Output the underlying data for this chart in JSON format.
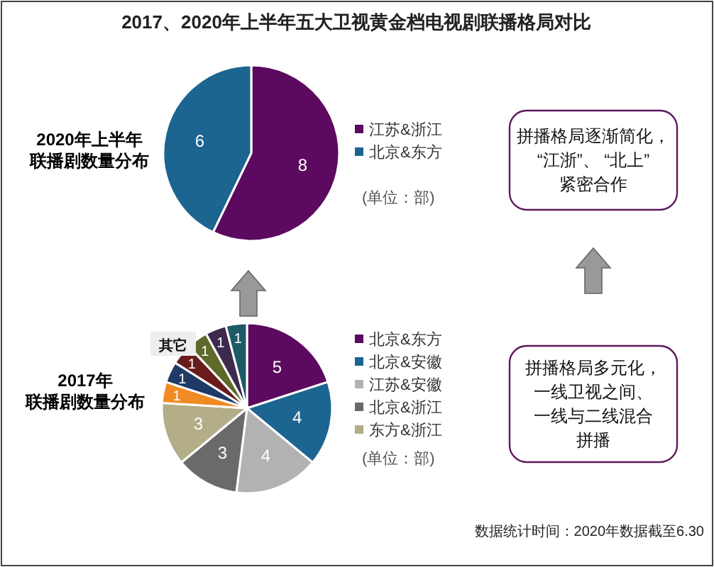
{
  "chart_data": [
    {
      "type": "pie",
      "title": "2020年上半年联播剧数量分布",
      "categories": [
        "江苏&浙江",
        "北京&东方"
      ],
      "values": [
        8,
        6
      ],
      "colors": [
        "#5c0a5f",
        "#1b6590"
      ],
      "data_labels": true,
      "legend": "right",
      "annotations": [
        "2017、2020年上半年五大卫视黄金档电视剧联播格局对比",
        "(单位：部)",
        "拼播格局逐渐简化，“江浙”、 “北上”紧密合作"
      ]
    },
    {
      "type": "pie",
      "title": "2017年联播剧数量分布",
      "categories": [
        "北京&东方",
        "北京&安徽",
        "江苏&安徽",
        "北京&浙江",
        "东方&浙江",
        null,
        null,
        null,
        null,
        null,
        null
      ],
      "values": [
        5,
        4,
        4,
        3,
        3,
        1,
        1,
        1,
        1,
        1,
        1
      ],
      "colors": [
        "#5c0a5f",
        "#1b6590",
        "#b2b2b2",
        "#6a6a6a",
        "#b3ad88",
        "#f08a24",
        "#1f3a66",
        "#6a1c1c",
        "#5d6a2a",
        "#3e2a4e",
        "#1d5a66"
      ],
      "data_labels": true,
      "legend": "right",
      "annotations": [
        "其它",
        "(单位：部)",
        "拼播格局多元化，一线卫视之间、一线与二线混合拼播",
        "数据统计时间：2020年数据截至6.30"
      ]
    }
  ]
}
